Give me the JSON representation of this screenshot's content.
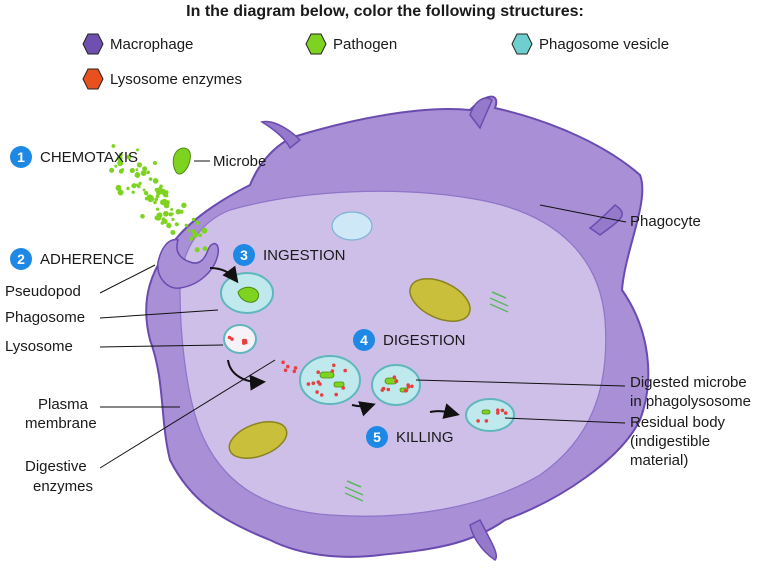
{
  "title": "In the diagram below, color the following structures:",
  "legend": [
    {
      "label": "Macrophage",
      "color": "#6f4fb0"
    },
    {
      "label": "Pathogen",
      "color": "#7ed321"
    },
    {
      "label": "Phagosome vesicle",
      "color": "#6fcfcf"
    },
    {
      "label": "Lysosome enzymes",
      "color": "#e8501e"
    }
  ],
  "steps": [
    {
      "number": "1",
      "label": "CHEMOTAXIS"
    },
    {
      "number": "2",
      "label": "ADHERENCE"
    },
    {
      "number": "3",
      "label": "INGESTION"
    },
    {
      "number": "4",
      "label": "DIGESTION"
    },
    {
      "number": "5",
      "label": "KILLING"
    }
  ],
  "labels": {
    "microbe": "Microbe",
    "phagocyte": "Phagocyte",
    "pseudopod": "Pseudopod",
    "phagosome": "Phagosome",
    "lysosome": "Lysosome",
    "plasma_membrane_1": "Plasma",
    "plasma_membrane_2": "membrane",
    "digestive_enzymes_1": "Digestive",
    "digestive_enzymes_2": "enzymes",
    "digested_microbe_1": "Digested microbe",
    "digested_microbe_2": "in phagolysosome",
    "residual_body_1": "Residual body",
    "residual_body_2": "(indigestible",
    "residual_body_3": "material)"
  },
  "colors": {
    "cell_fill": "#a88fd6",
    "cell_edge": "#6a4bb0",
    "cytoplasm": "#cfc2ea",
    "vesicle": "#bfe9ec",
    "vesicle_edge": "#5fb7bd",
    "microbe": "#7ed321",
    "enzyme": "#e84040",
    "mitochondrion": "#c9bf3a",
    "badge": "#1e88e5"
  }
}
